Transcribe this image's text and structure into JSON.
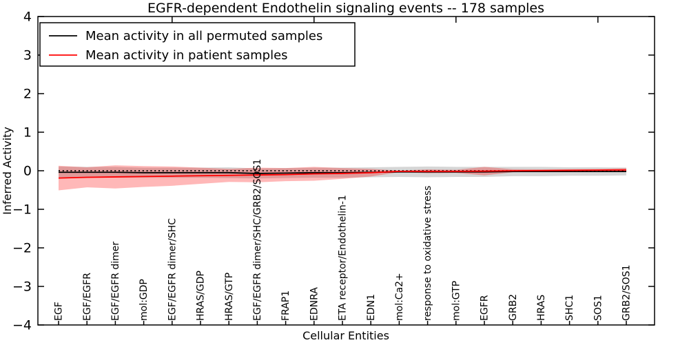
{
  "title": "EGFR-dependent Endothelin signaling events -- 178 samples",
  "legend": {
    "entries": [
      {
        "label": "Mean activity in all permuted samples",
        "color": "#000000"
      },
      {
        "label": "Mean activity in patient samples",
        "color": "#ff0000"
      }
    ]
  },
  "chart_data": {
    "type": "line",
    "title": "EGFR-dependent Endothelin signaling events -- 178 samples",
    "xlabel": "Cellular Entities",
    "ylabel": "Inferred Activity",
    "ylim": [
      -4,
      4
    ],
    "yticks": [
      4,
      3,
      2,
      1,
      0,
      -1,
      -2,
      -3,
      -4
    ],
    "grid": false,
    "legend_position": "upper left",
    "zero_reference_line": 0,
    "top_axis_ticks_at_categories": [
      5,
      10,
      15,
      20
    ],
    "categories": [
      "EGF",
      "EGF/EGFR",
      "EGF/EGFR dimer",
      "mol:GDP",
      "EGF/EGFR dimer/SHC",
      "HRAS/GDP",
      "HRAS/GTP",
      "EGF/EGFR dimer/SHC/GRB2/SOS1",
      "FRAP1",
      "EDNRA",
      "ETA receptor/Endothelin-1",
      "EDN1",
      "mol:Ca2+",
      "response to oxidative stress",
      "mol:GTP",
      "EGFR",
      "GRB2",
      "HRAS",
      "SHC1",
      "SOS1",
      "GRB2/SOS1"
    ],
    "series": [
      {
        "name": "Mean activity in all permuted samples",
        "color": "#000000",
        "band_color": "rgba(0,0,0,0.16)",
        "values": [
          -0.04,
          -0.04,
          -0.04,
          -0.05,
          -0.05,
          -0.05,
          -0.05,
          -0.07,
          -0.06,
          -0.05,
          -0.05,
          -0.04,
          -0.03,
          -0.03,
          -0.03,
          -0.03,
          -0.02,
          -0.02,
          -0.02,
          -0.02,
          -0.02
        ],
        "band_halfwidth": [
          0.15,
          0.14,
          0.14,
          0.13,
          0.13,
          0.13,
          0.14,
          0.13,
          0.13,
          0.13,
          0.13,
          0.13,
          0.13,
          0.14,
          0.13,
          0.13,
          0.12,
          0.12,
          0.11,
          0.11,
          0.1
        ]
      },
      {
        "name": "Mean activity in patient samples",
        "color": "#ff0000",
        "band_color": "rgba(255,0,0,0.28)",
        "values": [
          -0.19,
          -0.17,
          -0.16,
          -0.15,
          -0.14,
          -0.13,
          -0.12,
          -0.11,
          -0.1,
          -0.08,
          -0.07,
          -0.05,
          -0.015,
          -0.015,
          -0.015,
          -0.01,
          0.0,
          0.005,
          0.01,
          0.015,
          0.02
        ],
        "band_halfwidth": [
          0.32,
          0.26,
          0.3,
          0.27,
          0.25,
          0.21,
          0.17,
          0.19,
          0.17,
          0.18,
          0.14,
          0.1,
          0.02,
          0.05,
          0.04,
          0.11,
          0.04,
          0.03,
          0.03,
          0.03,
          0.05
        ]
      }
    ]
  }
}
